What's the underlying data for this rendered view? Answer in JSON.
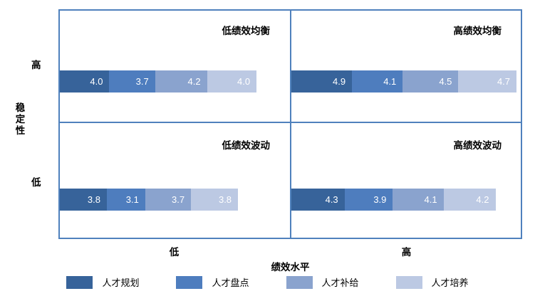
{
  "chart_data": {
    "type": "bar",
    "variant": "2x2-quadrant-matrix-with-stacked-horizontal-bars",
    "series": [
      {
        "name": "人才规划",
        "color": "#37639A"
      },
      {
        "name": "人才盘点",
        "color": "#4E7DBE"
      },
      {
        "name": "人才补给",
        "color": "#8AA3CE"
      },
      {
        "name": "人才培养",
        "color": "#BCC9E3"
      }
    ],
    "bar_scale_max_per_quadrant": 18.6,
    "quadrants": [
      {
        "id": "top-left",
        "title": "低绩效均衡",
        "values": [
          4.0,
          3.7,
          4.2,
          4.0
        ],
        "values_display": [
          "4.0",
          "3.7",
          "4.2",
          "4.0"
        ]
      },
      {
        "id": "top-right",
        "title": "高绩效均衡",
        "values": [
          4.9,
          4.1,
          4.5,
          4.7
        ],
        "values_display": [
          "4.9",
          "4.1",
          "4.5",
          "4.7"
        ]
      },
      {
        "id": "bottom-left",
        "title": "低绩效波动",
        "values": [
          3.8,
          3.1,
          3.7,
          3.8
        ],
        "values_display": [
          "3.8",
          "3.1",
          "3.7",
          "3.8"
        ]
      },
      {
        "id": "bottom-right",
        "title": "高绩效波动",
        "values": [
          4.3,
          3.9,
          4.1,
          4.2
        ],
        "values_display": [
          "4.3",
          "3.9",
          "4.1",
          "4.2"
        ]
      }
    ],
    "x_axis": {
      "label": "绩效水平",
      "ticks": [
        "低",
        "高"
      ]
    },
    "y_axis": {
      "label": "稳定性",
      "ticks": [
        "高",
        "低"
      ]
    },
    "legend": {
      "position": "bottom"
    },
    "frame_color": "#4F81BD",
    "value_label_color": "#FFFFFF",
    "grid": "2x2 quadrant dividers only"
  }
}
